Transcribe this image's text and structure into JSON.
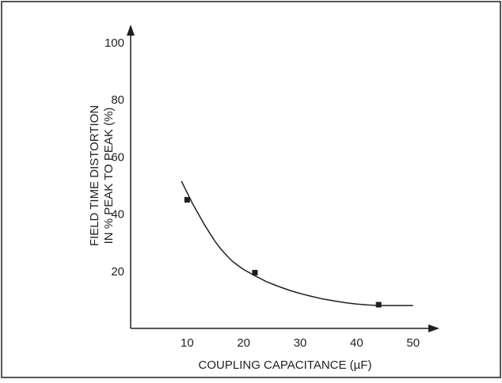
{
  "chart_data": {
    "type": "line",
    "title": "",
    "xlabel": "COUPLING CAPACITANCE (µF)",
    "ylabel_lines": [
      "FIELD TIME DISTORTION",
      "IN % PEAK TO PEAK (%)"
    ],
    "xlim": [
      0,
      52
    ],
    "ylim": [
      0,
      103
    ],
    "xticks": [
      10,
      20,
      30,
      40,
      50
    ],
    "yticks": [
      20,
      40,
      60,
      80,
      100
    ],
    "grid": false,
    "legend": "none",
    "line_color": "#231f20",
    "series": [
      {
        "curve": [
          [
            9,
            51.5
          ],
          [
            10,
            47.5
          ],
          [
            11,
            43.5
          ],
          [
            12,
            40
          ],
          [
            13,
            36.5
          ],
          [
            14,
            33.3
          ],
          [
            15,
            30.3
          ],
          [
            16,
            27.7
          ],
          [
            17,
            25.5
          ],
          [
            18,
            23.5
          ],
          [
            19,
            22
          ],
          [
            20,
            20.6
          ],
          [
            22,
            18.4
          ],
          [
            24,
            16.4
          ],
          [
            26,
            14.8
          ],
          [
            28,
            13.4
          ],
          [
            30,
            12.2
          ],
          [
            32,
            11.2
          ],
          [
            34,
            10.3
          ],
          [
            36,
            9.6
          ],
          [
            38,
            9
          ],
          [
            40,
            8.5
          ],
          [
            42,
            8.2
          ],
          [
            44,
            8
          ],
          [
            46,
            8
          ],
          [
            48,
            8
          ],
          [
            50,
            8
          ]
        ],
        "markers": [
          [
            10,
            45
          ],
          [
            22,
            19.5
          ],
          [
            43.9,
            8.3
          ]
        ]
      }
    ]
  }
}
